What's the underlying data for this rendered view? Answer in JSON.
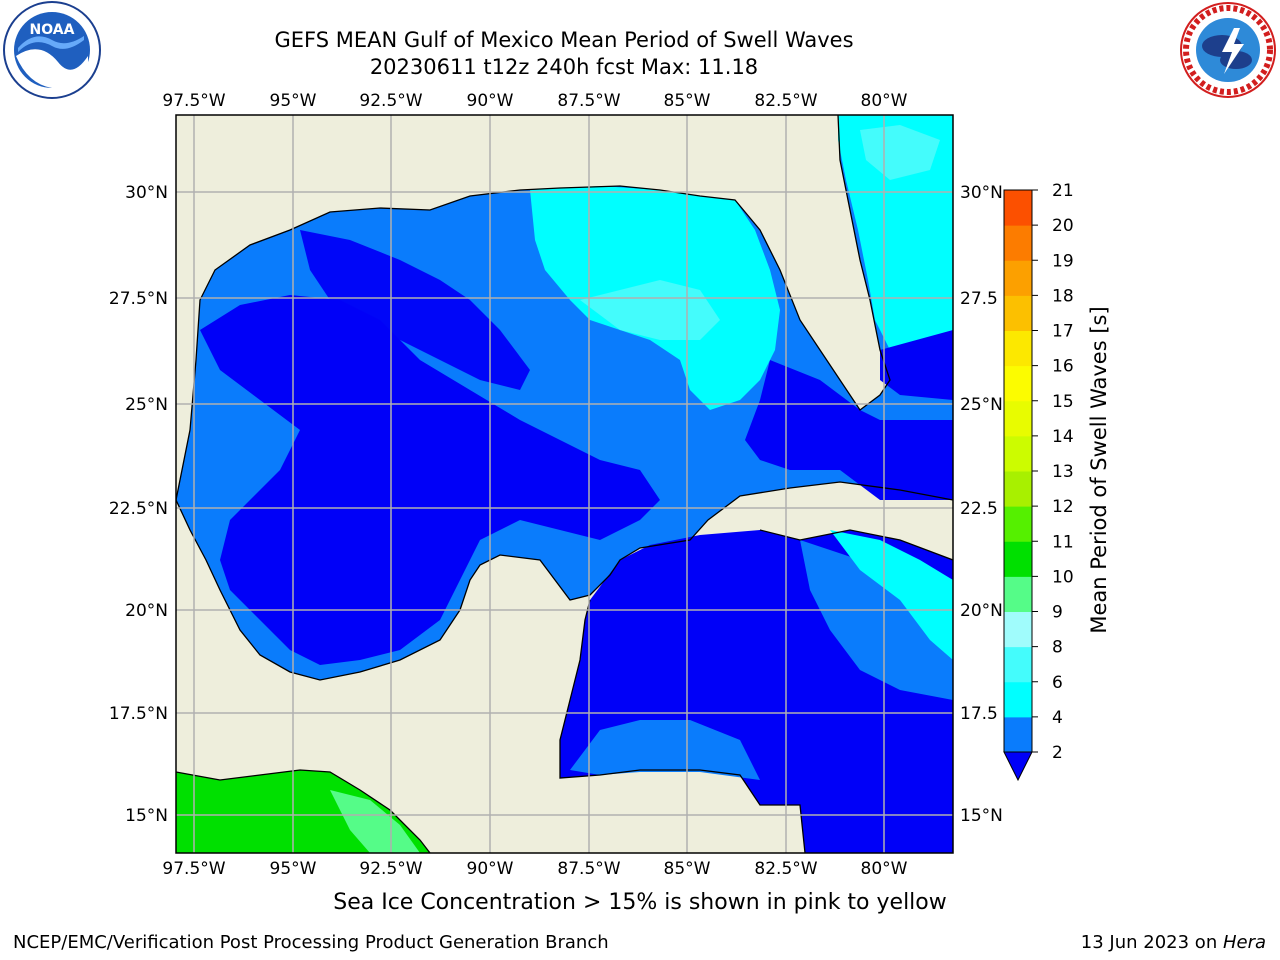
{
  "header": {
    "title_line1": "GEFS MEAN Gulf of Mexico Mean Period of Swell Waves",
    "title_line2": "20230611 t12z 240h fcst   Max: 11.18"
  },
  "map": {
    "lon_ticks": [
      "97.5°W",
      "95°W",
      "92.5°W",
      "90°W",
      "87.5°W",
      "85°W",
      "82.5°W",
      "80°W"
    ],
    "lat_ticks_left": [
      "30°N",
      "27.5°N",
      "25°N",
      "22.5°N",
      "20°N",
      "17.5°N",
      "15°N"
    ],
    "lat_ticks_right": [
      "30°N",
      "27.5",
      "25°N",
      "22.5",
      "20°N",
      "17.5",
      "15°N"
    ],
    "land_color": "#eeeedc",
    "grid_color": "#b0b0b0"
  },
  "colorbar": {
    "label": "Mean Period of Swell Waves [s]",
    "ticks": [
      "2",
      "4",
      "6",
      "8",
      "9",
      "10",
      "11",
      "12",
      "13",
      "14",
      "15",
      "16",
      "17",
      "18",
      "19",
      "20",
      "21"
    ],
    "colors": [
      "#0a7cfc",
      "#00ffff",
      "#44fcfc",
      "#a0fcfc",
      "#55fc88",
      "#00e000",
      "#55f000",
      "#a8f000",
      "#ccfc00",
      "#e8fc00",
      "#fcfc00",
      "#fce800",
      "#fcc000",
      "#fca000",
      "#fc7c00",
      "#fc5000",
      "#fc2800",
      "#fc0000"
    ],
    "under_color": "#0000f8"
  },
  "note": "Sea Ice Concentration > 15% is shown in pink to yellow",
  "footer": {
    "left": "NCEP/EMC/Verification Post Processing Product Generation Branch",
    "date": "13 Jun 2023 on ",
    "machine": "Hera"
  }
}
